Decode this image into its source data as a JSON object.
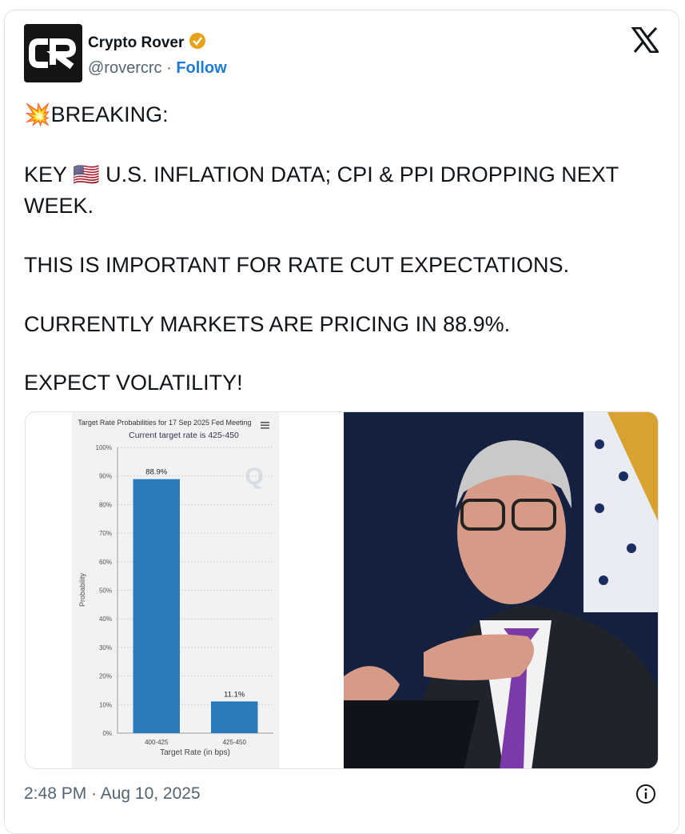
{
  "author": {
    "name": "Crypto Rover",
    "handle": "@rovercrc",
    "separator": "·",
    "follow": "Follow"
  },
  "text": [
    "💥BREAKING:",
    "KEY 🇺🇸 U.S. INFLATION DATA; CPI & PPI DROPPING NEXT WEEK.",
    "THIS IS IMPORTANT FOR RATE CUT EXPECTATIONS.",
    "CURRENTLY MARKETS ARE PRICING IN 88.9%.",
    "EXPECT VOLATILITY!"
  ],
  "timestamp": "2:48 PM · Aug 10, 2025",
  "chart_data": {
    "type": "bar",
    "title": "Target Rate Probabilities for 17 Sep 2025 Fed Meeting",
    "subtitle": "Current target rate is 425-450",
    "x_label": "Target Rate (in bps)",
    "y_label": "Probability",
    "categories": [
      "400-425",
      "425-450"
    ],
    "values": [
      88.9,
      11.1
    ],
    "value_labels": [
      "88.9%",
      "11.1%"
    ],
    "color": "#2b7bba",
    "ylim": [
      0,
      100
    ],
    "yticks": [
      {
        "value": 0,
        "label": "0%"
      },
      {
        "value": 10,
        "label": "10%"
      },
      {
        "value": 20,
        "label": "20%"
      },
      {
        "value": 30,
        "label": "30%"
      },
      {
        "value": 40,
        "label": "40%"
      },
      {
        "value": 50,
        "label": "50%"
      },
      {
        "value": 60,
        "label": "60%"
      },
      {
        "value": 70,
        "label": "70%"
      },
      {
        "value": 80,
        "label": "80%"
      },
      {
        "value": 90,
        "label": "90%"
      },
      {
        "value": 100,
        "label": "100%"
      }
    ],
    "grid": true
  }
}
